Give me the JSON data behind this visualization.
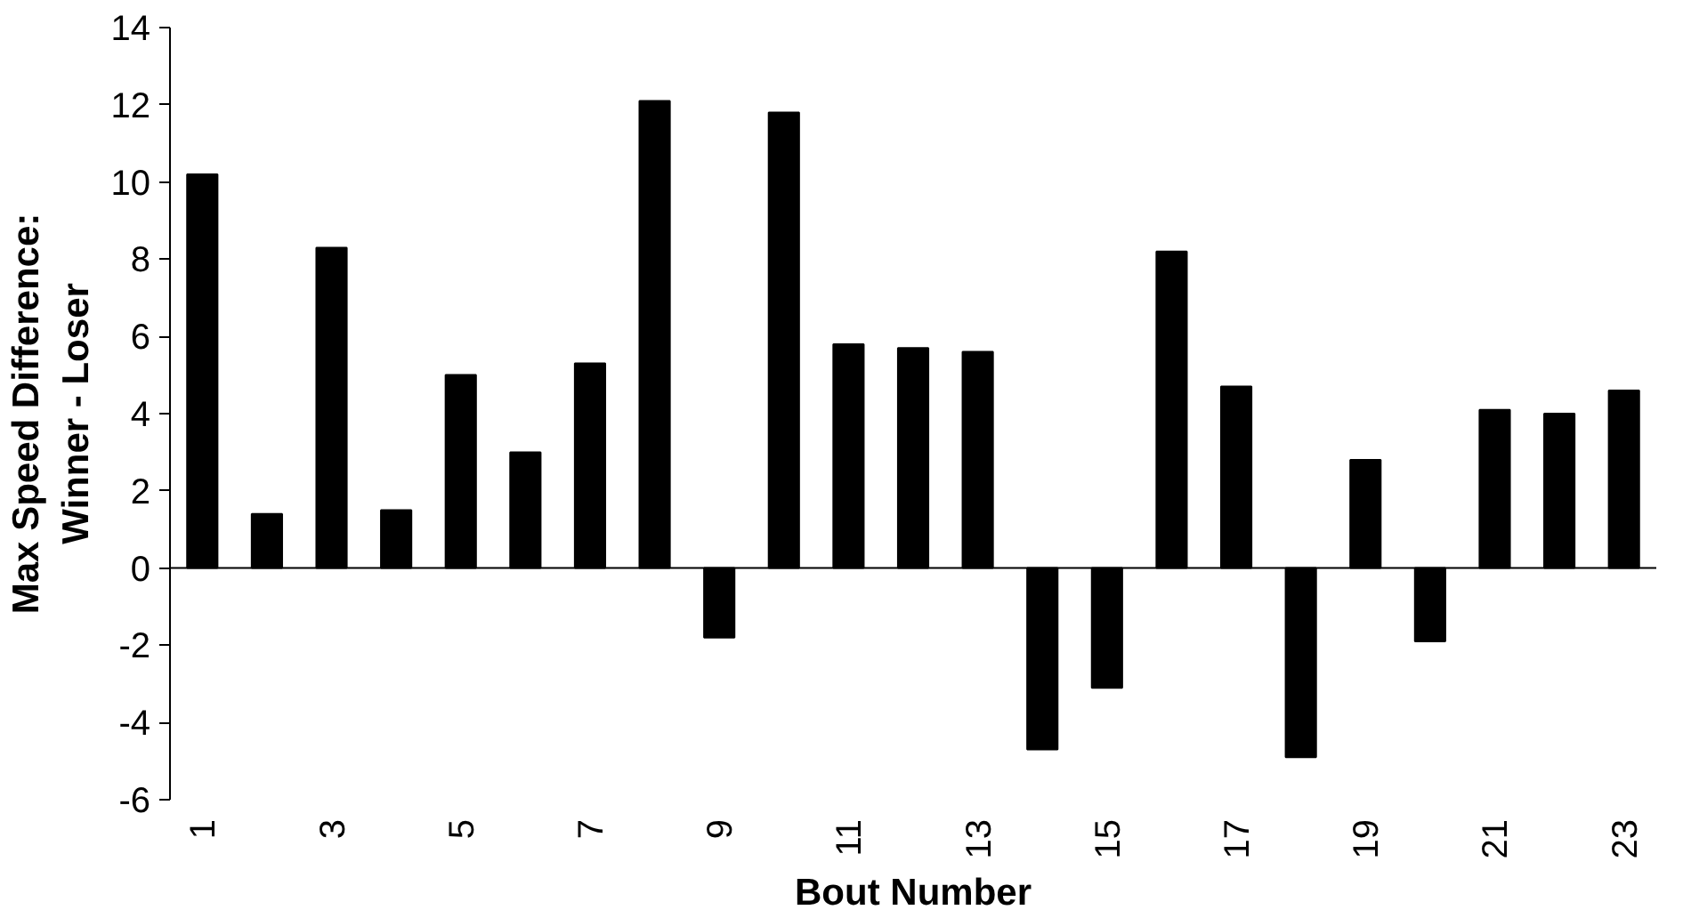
{
  "chart_data": {
    "type": "bar",
    "xlabel": "Bout Number",
    "ylabel": "Max Speed Difference:\nWinner - Loser",
    "categories": [
      "1",
      null,
      "3",
      null,
      "5",
      null,
      "7",
      null,
      "9",
      null,
      "11",
      null,
      "13",
      null,
      "15",
      null,
      "17",
      null,
      "19",
      null,
      "21",
      null,
      "23"
    ],
    "values": [
      10.2,
      1.4,
      8.3,
      1.5,
      5.0,
      3.0,
      5.3,
      12.1,
      -1.8,
      11.8,
      5.8,
      5.7,
      5.6,
      -4.7,
      -3.1,
      8.2,
      4.7,
      -4.9,
      2.8,
      -1.9,
      4.1,
      4.0,
      4.6
    ],
    "color": "#000000",
    "ylim": [
      -6,
      14
    ],
    "yticks": [
      -6,
      -4,
      -2,
      0,
      2,
      4,
      6,
      8,
      10,
      12,
      14
    ],
    "ref_lines": [
      {
        "axis": "y",
        "value": 0,
        "color": "#000000"
      }
    ]
  }
}
